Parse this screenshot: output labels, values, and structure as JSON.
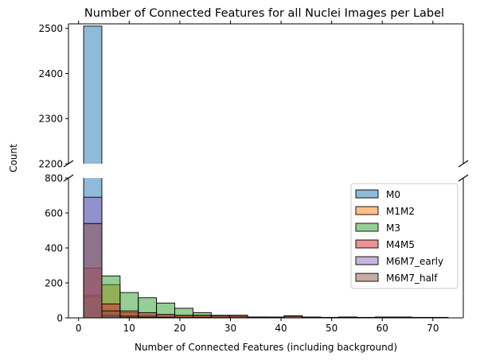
{
  "chart_data": {
    "type": "bar",
    "subtype": "overlaid-histogram-broken-y-axis",
    "title": "Number of Connected Features for all Nuclei Images per Label",
    "xlabel": "Number of Connected Features (including background)",
    "ylabel": "Count",
    "x_ticks": [
      0,
      10,
      20,
      30,
      40,
      50,
      60,
      70
    ],
    "xlim": [
      -2,
      76
    ],
    "bin_edges": [
      1,
      4.6,
      8.2,
      11.8,
      15.4,
      19,
      22.6,
      26.2,
      29.8,
      33.4,
      37,
      40.6,
      44.2,
      47.8,
      51.4,
      55,
      58.6,
      62.2,
      65.8,
      69.4,
      73
    ],
    "upper_panel": {
      "ylim": [
        2200,
        2510
      ],
      "y_ticks": [
        2200,
        2300,
        2400,
        2500
      ]
    },
    "lower_panel": {
      "ylim": [
        0,
        800
      ],
      "y_ticks": [
        0,
        200,
        400,
        600,
        800
      ]
    },
    "grid": false,
    "legend_position": "center-right",
    "series": [
      {
        "name": "M0",
        "color": "#1f77b4",
        "values": [
          2505,
          20,
          5,
          3,
          2,
          1,
          1,
          0,
          0,
          0,
          0,
          0,
          0,
          0,
          0,
          0,
          0,
          0,
          0,
          0
        ]
      },
      {
        "name": "M1M2",
        "color": "#ff7f0e",
        "values": [
          130,
          190,
          30,
          15,
          10,
          10,
          10,
          5,
          5,
          3,
          3,
          12,
          3,
          2,
          2,
          0,
          2,
          2,
          0,
          0
        ]
      },
      {
        "name": "M3",
        "color": "#2ca02c",
        "values": [
          120,
          240,
          145,
          115,
          85,
          55,
          30,
          12,
          10,
          5,
          3,
          10,
          3,
          2,
          5,
          2,
          3,
          2,
          1,
          1
        ]
      },
      {
        "name": "M4M5",
        "color": "#d62728",
        "values": [
          285,
          80,
          40,
          30,
          20,
          15,
          15,
          15,
          15,
          5,
          5,
          10,
          5,
          3,
          5,
          3,
          5,
          5,
          3,
          3
        ]
      },
      {
        "name": "M6M7_early",
        "color": "#9467bd",
        "values": [
          690,
          10,
          2,
          1,
          0,
          0,
          0,
          0,
          0,
          0,
          0,
          0,
          0,
          0,
          0,
          0,
          0,
          0,
          0,
          0
        ]
      },
      {
        "name": "M6M7_half",
        "color": "#8c564b",
        "values": [
          540,
          40,
          10,
          5,
          3,
          2,
          2,
          1,
          0,
          0,
          0,
          0,
          0,
          0,
          0,
          0,
          0,
          0,
          0,
          0
        ]
      }
    ]
  }
}
